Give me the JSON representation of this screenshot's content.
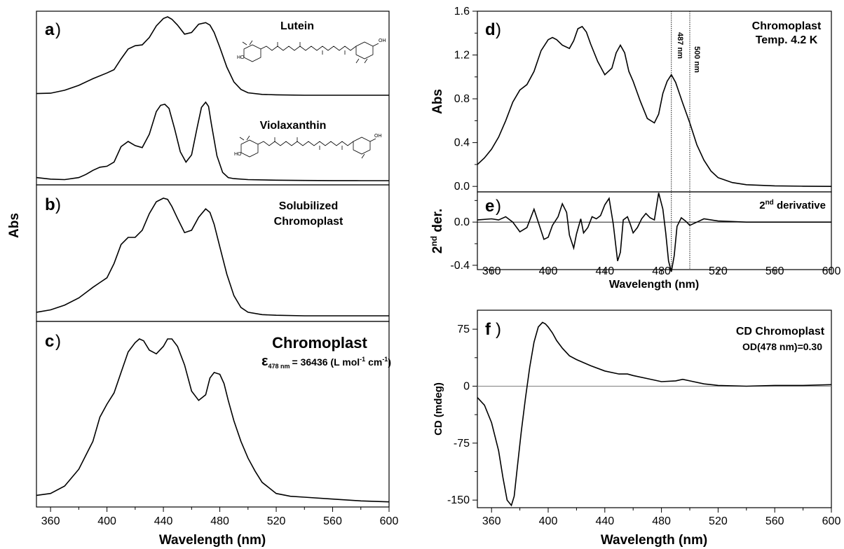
{
  "chart_data": [
    {
      "panel": "a",
      "panel_letter": "a",
      "type": "line",
      "ylabel": "Abs",
      "xlim": [
        350,
        600
      ],
      "series": [
        {
          "name": "Lutein",
          "x": [
            350,
            360,
            370,
            380,
            390,
            400,
            405,
            410,
            415,
            420,
            425,
            430,
            435,
            440,
            443,
            446,
            450,
            455,
            460,
            465,
            470,
            473,
            476,
            480,
            485,
            490,
            495,
            500,
            510,
            520,
            540,
            560,
            580,
            600
          ],
          "y": [
            0.02,
            0.025,
            0.06,
            0.12,
            0.2,
            0.27,
            0.31,
            0.44,
            0.56,
            0.6,
            0.61,
            0.7,
            0.84,
            0.93,
            0.95,
            0.92,
            0.85,
            0.74,
            0.76,
            0.86,
            0.88,
            0.85,
            0.76,
            0.58,
            0.34,
            0.16,
            0.07,
            0.03,
            0.01,
            0.005,
            0,
            0,
            0,
            0
          ]
        },
        {
          "name": "Violaxanthin",
          "x": [
            350,
            360,
            370,
            380,
            385,
            390,
            395,
            400,
            405,
            410,
            415,
            420,
            425,
            430,
            435,
            438,
            441,
            444,
            448,
            452,
            456,
            460,
            464,
            467,
            470,
            472,
            474,
            478,
            482,
            486,
            490,
            500,
            520,
            540,
            560,
            580,
            600
          ],
          "y": [
            0.03,
            0.015,
            0.01,
            0.03,
            0.06,
            0.1,
            0.13,
            0.14,
            0.18,
            0.33,
            0.38,
            0.34,
            0.32,
            0.45,
            0.67,
            0.73,
            0.74,
            0.7,
            0.5,
            0.28,
            0.18,
            0.25,
            0.52,
            0.71,
            0.76,
            0.72,
            0.55,
            0.24,
            0.08,
            0.03,
            0.02,
            0.01,
            0.005,
            0.002,
            0.001,
            0,
            0
          ]
        }
      ],
      "labels": [
        "Lutein",
        "Violaxanthin"
      ]
    },
    {
      "panel": "b",
      "panel_letter": "b",
      "type": "line",
      "xlim": [
        350,
        600
      ],
      "series": [
        {
          "name": "Solubilized Chromoplast",
          "x": [
            350,
            360,
            370,
            380,
            390,
            395,
            400,
            405,
            410,
            415,
            420,
            425,
            430,
            435,
            440,
            443,
            446,
            450,
            455,
            460,
            465,
            470,
            473,
            476,
            480,
            485,
            490,
            495,
            500,
            510,
            520,
            540,
            560,
            580,
            600
          ],
          "y": [
            0.03,
            0.05,
            0.09,
            0.15,
            0.24,
            0.28,
            0.32,
            0.44,
            0.6,
            0.66,
            0.66,
            0.72,
            0.86,
            0.96,
            0.99,
            0.98,
            0.92,
            0.82,
            0.7,
            0.72,
            0.83,
            0.9,
            0.87,
            0.77,
            0.58,
            0.35,
            0.17,
            0.07,
            0.03,
            0.01,
            0.005,
            0,
            0,
            0,
            0
          ]
        }
      ],
      "labels": [
        "Solubilized",
        "Chromoplast"
      ]
    },
    {
      "panel": "c",
      "panel_letter": "c",
      "type": "line",
      "xlim": [
        350,
        600
      ],
      "xticks": [
        360,
        400,
        440,
        480,
        520,
        560,
        600
      ],
      "xlabel": "Wavelength (nm)",
      "series": [
        {
          "name": "Chromoplast",
          "x": [
            350,
            360,
            370,
            380,
            390,
            395,
            400,
            405,
            410,
            415,
            420,
            423,
            426,
            430,
            435,
            440,
            443,
            446,
            450,
            455,
            460,
            465,
            470,
            473,
            476,
            480,
            483,
            486,
            490,
            495,
            500,
            505,
            510,
            520,
            530,
            540,
            560,
            580,
            600
          ],
          "y": [
            0.04,
            0.05,
            0.09,
            0.18,
            0.33,
            0.46,
            0.53,
            0.59,
            0.7,
            0.81,
            0.86,
            0.88,
            0.87,
            0.82,
            0.8,
            0.84,
            0.88,
            0.88,
            0.84,
            0.74,
            0.6,
            0.55,
            0.58,
            0.67,
            0.7,
            0.69,
            0.64,
            0.55,
            0.44,
            0.33,
            0.24,
            0.17,
            0.11,
            0.05,
            0.035,
            0.03,
            0.02,
            0.01,
            0.005
          ]
        }
      ],
      "label": "Chromoplast",
      "epsilon": {
        "symbol": "ε",
        "subscript": "478 nm",
        "value": "= 36436 (L mol",
        "exp1": "-1",
        "mid": " cm",
        "exp2": "-1",
        "end": ")"
      }
    },
    {
      "panel": "d",
      "panel_letter": "d",
      "type": "line",
      "ylabel": "Abs",
      "xlim": [
        350,
        600
      ],
      "ylim": [
        -0.05,
        1.6
      ],
      "yticks": [
        0.0,
        0.4,
        0.8,
        1.2,
        1.6
      ],
      "ytick_labels": [
        "0.0",
        "0.4",
        "0.8",
        "1.2",
        "1.6"
      ],
      "series": [
        {
          "name": "Chromoplast Temp. 4.2 K",
          "x": [
            350,
            355,
            360,
            365,
            370,
            375,
            380,
            385,
            390,
            395,
            400,
            403,
            406,
            410,
            415,
            418,
            421,
            424,
            427,
            430,
            435,
            440,
            445,
            448,
            451,
            454,
            457,
            460,
            465,
            470,
            475,
            478,
            481,
            484,
            487,
            490,
            495,
            500,
            505,
            510,
            515,
            520,
            530,
            540,
            560,
            580,
            600
          ],
          "y": [
            0.2,
            0.26,
            0.34,
            0.45,
            0.6,
            0.77,
            0.88,
            0.93,
            1.05,
            1.24,
            1.34,
            1.36,
            1.34,
            1.29,
            1.26,
            1.33,
            1.44,
            1.46,
            1.41,
            1.3,
            1.14,
            1.02,
            1.08,
            1.22,
            1.29,
            1.22,
            1.05,
            0.96,
            0.78,
            0.62,
            0.58,
            0.66,
            0.85,
            0.96,
            1.02,
            0.95,
            0.76,
            0.58,
            0.38,
            0.24,
            0.14,
            0.08,
            0.035,
            0.015,
            0.005,
            0.002,
            0
          ]
        }
      ],
      "labels": [
        "Chromoplast",
        "Temp. 4.2 K"
      ],
      "vlines": [
        {
          "x": 487,
          "label": "487 nm"
        },
        {
          "x": 500,
          "label": "500 nm"
        }
      ]
    },
    {
      "panel": "e",
      "panel_letter": "e",
      "type": "line",
      "ylabel_main": "2",
      "ylabel_sup": "nd",
      "ylabel_rest": " der.",
      "xlim": [
        350,
        600
      ],
      "ylim": [
        -0.44,
        0.28
      ],
      "yticks": [
        0.0,
        -0.4
      ],
      "ytick_labels": [
        "0.0",
        "-0.4"
      ],
      "xticks": [
        360,
        400,
        440,
        480,
        520,
        560,
        600
      ],
      "xlabel": "Wavelength (nm)",
      "series": [
        {
          "name": "2nd derivative",
          "x": [
            350,
            360,
            365,
            370,
            375,
            380,
            385,
            390,
            393,
            397,
            400,
            403,
            407,
            410,
            413,
            415,
            418,
            420,
            423,
            425,
            428,
            431,
            434,
            437,
            440,
            443,
            446,
            449,
            451,
            453,
            456,
            458,
            460,
            463,
            466,
            469,
            472,
            475,
            478,
            481,
            483,
            485,
            487,
            489,
            491,
            494,
            497,
            500,
            505,
            510,
            520,
            540,
            560,
            580,
            600
          ],
          "y": [
            0.02,
            0.03,
            0.02,
            0.05,
            0.0,
            -0.09,
            -0.05,
            0.12,
            0.0,
            -0.16,
            -0.14,
            -0.03,
            0.05,
            0.17,
            0.09,
            -0.12,
            -0.24,
            -0.11,
            0.03,
            -0.1,
            -0.05,
            0.05,
            0.03,
            0.06,
            0.16,
            0.22,
            -0.02,
            -0.36,
            -0.28,
            0.02,
            0.05,
            -0.02,
            -0.1,
            -0.05,
            0.03,
            0.08,
            0.04,
            0.02,
            0.27,
            0.12,
            -0.1,
            -0.36,
            -0.46,
            -0.31,
            -0.04,
            0.04,
            0.01,
            -0.03,
            0.0,
            0.03,
            0.01,
            0.0,
            0.0,
            0.0,
            0.0
          ]
        }
      ],
      "label_main": "2",
      "label_sup": "nd",
      "label_rest": " derivative",
      "vlines": [
        487,
        500
      ]
    },
    {
      "panel": "f",
      "panel_letter": "f",
      "type": "line",
      "ylabel": "CD (mdeg)",
      "xlim": [
        350,
        600
      ],
      "ylim": [
        -160,
        100
      ],
      "yticks": [
        75,
        0,
        -75,
        -150
      ],
      "ytick_labels": [
        "75",
        "0",
        "-75",
        "-150"
      ],
      "xticks": [
        360,
        400,
        440,
        480,
        520,
        560,
        600
      ],
      "xlabel": "Wavelength (nm)",
      "series": [
        {
          "name": "CD Chromoplast",
          "x": [
            350,
            355,
            360,
            365,
            368,
            371,
            374,
            376,
            378,
            381,
            384,
            387,
            390,
            393,
            396,
            398,
            400,
            403,
            406,
            410,
            415,
            420,
            430,
            440,
            450,
            456,
            460,
            470,
            480,
            490,
            495,
            500,
            510,
            520,
            540,
            560,
            580,
            600
          ],
          "y": [
            -15,
            -25,
            -48,
            -85,
            -120,
            -150,
            -157,
            -145,
            -110,
            -60,
            -15,
            25,
            58,
            78,
            84,
            82,
            78,
            70,
            60,
            50,
            40,
            35,
            27,
            20,
            16,
            16,
            14,
            10,
            6,
            7,
            9,
            7,
            3,
            1,
            0,
            1,
            1,
            2
          ]
        }
      ],
      "label": "CD Chromoplast",
      "od_label": "OD(478 nm)=0.30"
    }
  ],
  "panel_b_c_shared_ylabel": "Abs"
}
